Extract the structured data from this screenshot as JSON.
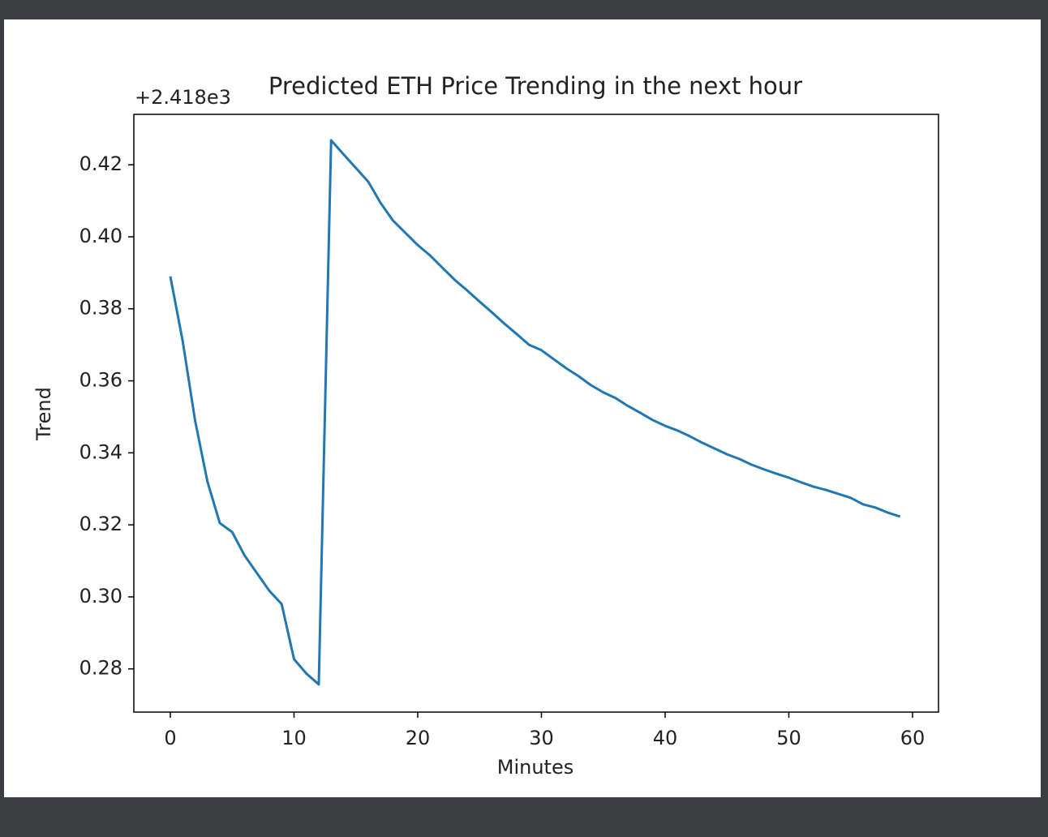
{
  "chart_data": {
    "type": "line",
    "title": "Predicted ETH Price Trending in the next hour",
    "y_offset_label": "+2.418e3",
    "x_label": "Minutes",
    "y_label": "Trend",
    "x": [
      0,
      1,
      2,
      3,
      4,
      5,
      6,
      7,
      8,
      9,
      10,
      11,
      12,
      13,
      14,
      15,
      16,
      17,
      18,
      19,
      20,
      21,
      22,
      23,
      24,
      25,
      26,
      27,
      28,
      29,
      30,
      31,
      32,
      33,
      34,
      35,
      36,
      37,
      38,
      39,
      40,
      41,
      42,
      43,
      44,
      45,
      46,
      47,
      48,
      49,
      50,
      51,
      52,
      53,
      54,
      55,
      56,
      57,
      58,
      59
    ],
    "series": [
      {
        "color": "#1f77b4",
        "values": [
          0.389,
          0.371,
          0.349,
          0.332,
          0.3205,
          0.318,
          0.3115,
          0.3066,
          0.3017,
          0.298,
          0.2827,
          0.2787,
          0.2757,
          0.4268,
          0.4229,
          0.4191,
          0.4153,
          0.4094,
          0.4045,
          0.4011,
          0.3977,
          0.3948,
          0.3914,
          0.388,
          0.3851,
          0.382,
          0.379,
          0.3759,
          0.373,
          0.37,
          0.3685,
          0.366,
          0.3635,
          0.3613,
          0.3588,
          0.3568,
          0.3552,
          0.353,
          0.3511,
          0.3491,
          0.3475,
          0.3462,
          0.3446,
          0.3428,
          0.3412,
          0.3396,
          0.3383,
          0.3367,
          0.3354,
          0.3342,
          0.3331,
          0.3318,
          0.3306,
          0.3297,
          0.3286,
          0.3275,
          0.3257,
          0.3248,
          0.3234,
          0.3223
        ]
      }
    ],
    "xlim": [
      -2.95,
      62.1
    ],
    "ylim": [
      0.268,
      0.434
    ],
    "xticks": [
      0,
      10,
      20,
      30,
      40,
      50,
      60
    ],
    "yticks": [
      0.28,
      {
        "value": 0.3,
        "label": "0.30"
      },
      0.32,
      0.34,
      0.36,
      0.38,
      {
        "value": 0.4,
        "label": "0.40"
      },
      0.42
    ]
  }
}
